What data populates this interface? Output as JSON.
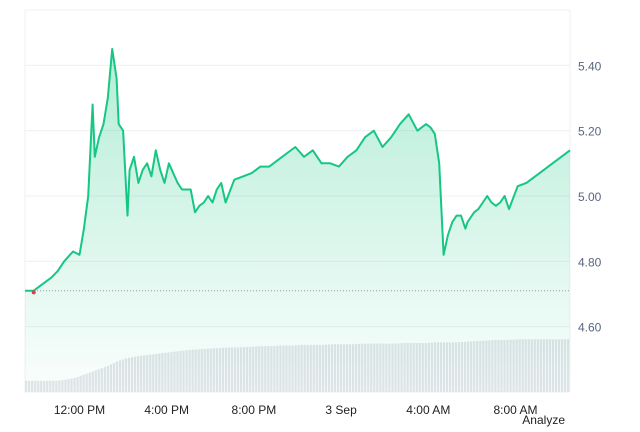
{
  "footer": {
    "analyze_label": "Analyze"
  },
  "colors": {
    "line": "#16c784",
    "fill_top": "#16c784",
    "baseline": "#999999",
    "volume": "#e2e4e9",
    "grid": "#eef0f3",
    "axis_text": "#58667e",
    "marker": "#ea3943"
  },
  "chart_data": {
    "type": "area",
    "ylim": [
      4.4,
      5.6
    ],
    "baseline": 4.71,
    "y_ticks": [
      {
        "value": 5.4,
        "label": "5.40"
      },
      {
        "value": 5.2,
        "label": "5.20"
      },
      {
        "value": 5.0,
        "label": "5.00"
      },
      {
        "value": 4.8,
        "label": "4.80"
      },
      {
        "value": 4.6,
        "label": "4.60"
      }
    ],
    "x_ticks": [
      {
        "label": "12:00 PM",
        "t": 1.3
      },
      {
        "label": "4:00 PM",
        "t": 5.3
      },
      {
        "label": "8:00 PM",
        "t": 9.3
      },
      {
        "label": "3 Sep",
        "t": 13.3
      },
      {
        "label": "4:00 AM",
        "t": 17.3
      },
      {
        "label": "8:00 AM",
        "t": 21.3
      }
    ],
    "x_range": [
      -1.2,
      23.8
    ],
    "series": [
      {
        "x": [
          -1.2,
          -0.8,
          -0.4,
          0.0,
          0.3,
          0.6,
          1.0,
          1.3,
          1.5,
          1.7,
          1.9,
          2.0,
          2.2,
          2.4,
          2.6,
          2.8,
          3.0,
          3.1,
          3.3,
          3.5,
          3.6,
          3.8,
          4.0,
          4.2,
          4.4,
          4.6,
          4.8,
          5.0,
          5.2,
          5.4,
          5.6,
          5.8,
          6.0,
          6.2,
          6.4,
          6.6,
          6.8,
          7.0,
          7.2,
          7.4,
          7.6,
          7.8,
          8.0,
          8.4,
          8.8,
          9.2,
          9.6,
          10.0,
          10.4,
          10.8,
          11.2,
          11.6,
          12.0,
          12.4,
          12.8,
          13.2,
          13.6,
          14.0,
          14.4,
          14.8,
          15.2,
          15.6,
          16.0,
          16.4,
          16.8,
          17.2,
          17.4,
          17.6,
          17.8,
          18.0,
          18.2,
          18.4,
          18.6,
          18.8,
          19.0,
          19.1,
          19.2,
          19.4,
          19.6,
          19.8,
          20.0,
          20.2,
          20.4,
          20.6,
          20.8,
          21.0,
          21.4,
          21.8,
          22.2,
          22.6,
          23.0,
          23.4,
          23.8
        ],
        "y": [
          4.71,
          4.71,
          4.73,
          4.75,
          4.77,
          4.8,
          4.83,
          4.82,
          4.9,
          5.0,
          5.28,
          5.12,
          5.18,
          5.22,
          5.3,
          5.45,
          5.36,
          5.22,
          5.2,
          4.94,
          5.08,
          5.12,
          5.04,
          5.08,
          5.1,
          5.06,
          5.14,
          5.08,
          5.04,
          5.1,
          5.07,
          5.04,
          5.02,
          5.02,
          5.02,
          4.95,
          4.97,
          4.98,
          5.0,
          4.98,
          5.02,
          5.04,
          4.98,
          5.05,
          5.06,
          5.07,
          5.09,
          5.09,
          5.11,
          5.13,
          5.15,
          5.12,
          5.14,
          5.1,
          5.1,
          5.09,
          5.12,
          5.14,
          5.18,
          5.2,
          5.15,
          5.18,
          5.22,
          5.25,
          5.2,
          5.22,
          5.21,
          5.19,
          5.1,
          4.82,
          4.88,
          4.92,
          4.94,
          4.94,
          4.9,
          4.92,
          4.93,
          4.95,
          4.96,
          4.98,
          5.0,
          4.98,
          4.97,
          4.98,
          5.0,
          4.96,
          5.03,
          5.04,
          5.06,
          5.08,
          5.1,
          5.12,
          5.14
        ]
      }
    ],
    "volume_profile": [
      0.18,
      0.18,
      0.18,
      0.18,
      0.2,
      0.24,
      0.3,
      0.36,
      0.42,
      0.5,
      0.55,
      0.58,
      0.6,
      0.62,
      0.64,
      0.66,
      0.68,
      0.69,
      0.7,
      0.71,
      0.72,
      0.72,
      0.73,
      0.74,
      0.74,
      0.75,
      0.75,
      0.76,
      0.76,
      0.76,
      0.77,
      0.77,
      0.77,
      0.78,
      0.78,
      0.78,
      0.78,
      0.79,
      0.79,
      0.79,
      0.8,
      0.8,
      0.8,
      0.81,
      0.82,
      0.83,
      0.84,
      0.84,
      0.85,
      0.85,
      0.85,
      0.85,
      0.85,
      0.85
    ],
    "start_marker": {
      "x": -0.8,
      "y": 4.705
    },
    "grid": true
  }
}
